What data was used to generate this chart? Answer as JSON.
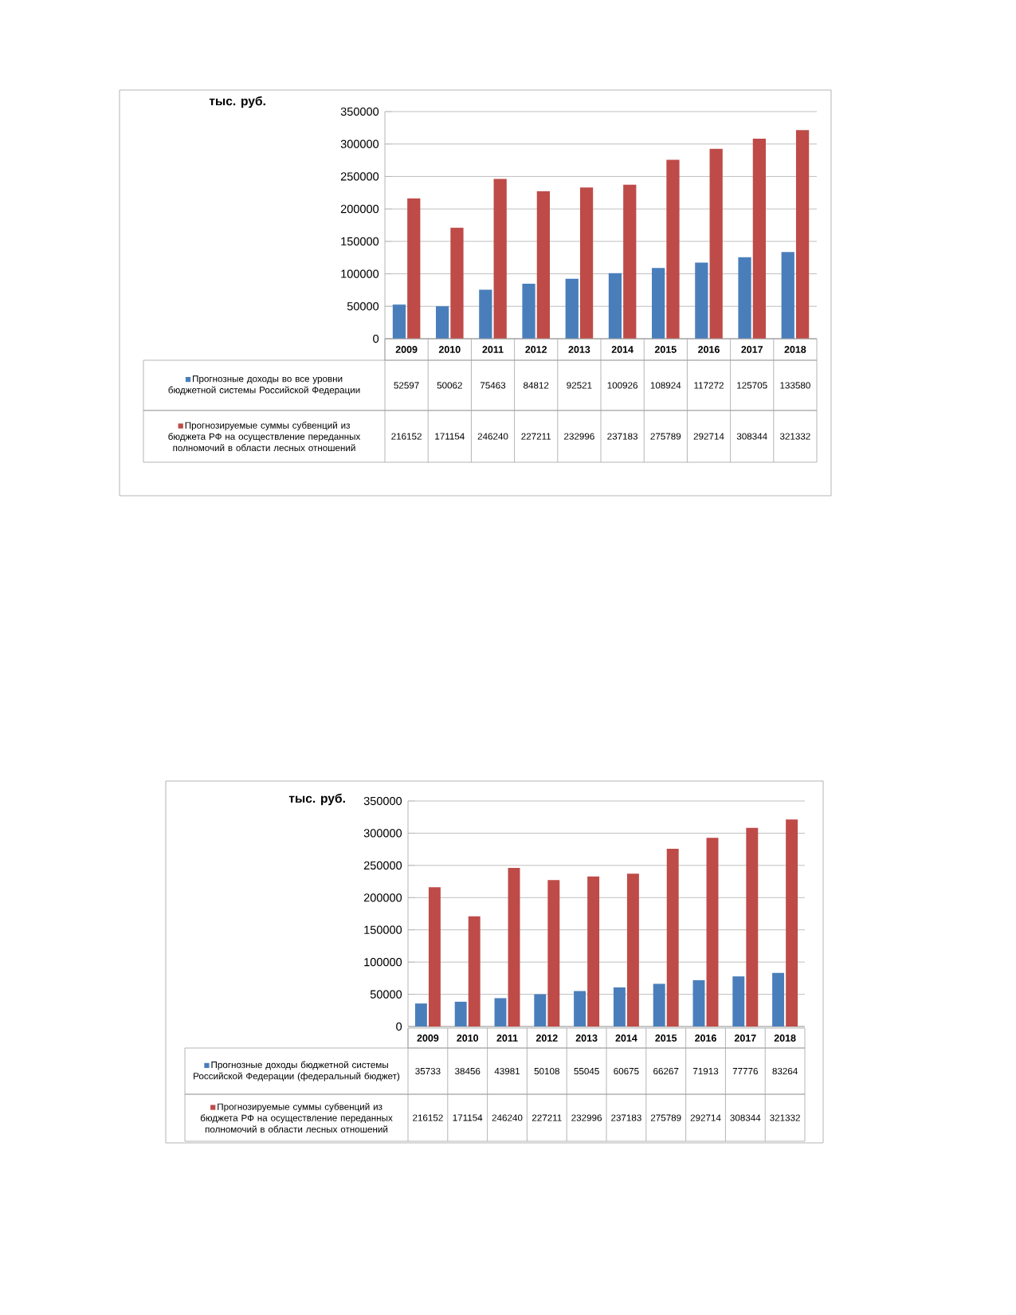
{
  "chart_data": [
    {
      "type": "bar",
      "ylabel": "тыс. руб.",
      "categories": [
        "2009",
        "2010",
        "2011",
        "2012",
        "2013",
        "2014",
        "2015",
        "2016",
        "2017",
        "2018"
      ],
      "series": [
        {
          "name": "Прогнозные доходы во все уровни бюджетной системы Российской Федерации",
          "color": "#4a7ebb",
          "values": [
            52597,
            50062,
            75463,
            84812,
            92521,
            100926,
            108924,
            117272,
            125705,
            133580
          ]
        },
        {
          "name": "Прогнозируемые суммы субвенций из бюджета РФ на осуществление переданных полномочий в области лесных отношений",
          "color": "#be4b48",
          "values": [
            216152,
            171154,
            246240,
            227211,
            232996,
            237183,
            275789,
            292714,
            308344,
            321332
          ]
        }
      ],
      "ylim": [
        0,
        350000
      ],
      "yticks": [
        0,
        50000,
        100000,
        150000,
        200000,
        250000,
        300000,
        350000
      ],
      "grid": "y",
      "legend": "bottom",
      "data_labels": true
    },
    {
      "type": "bar",
      "ylabel": "тыс. руб.",
      "categories": [
        "2009",
        "2010",
        "2011",
        "2012",
        "2013",
        "2014",
        "2015",
        "2016",
        "2017",
        "2018"
      ],
      "series": [
        {
          "name": "Прогнозные доходы бюджетной системы Российской Федерации (федеральный бюджет)",
          "color": "#4a7ebb",
          "values": [
            35733,
            38456,
            43981,
            50108,
            55045,
            60675,
            66267,
            71913,
            77776,
            83264
          ]
        },
        {
          "name": "Прогнозируемые суммы субвенций из бюджета РФ на осуществление переданных полномочий в области лесных отношений",
          "color": "#be4b48",
          "values": [
            216152,
            171154,
            246240,
            227211,
            232996,
            237183,
            275789,
            292714,
            308344,
            321332
          ]
        }
      ],
      "ylim": [
        0,
        350000
      ],
      "yticks": [
        0,
        50000,
        100000,
        150000,
        200000,
        250000,
        300000,
        350000
      ],
      "grid": "y",
      "legend": "bottom",
      "data_labels": true
    }
  ]
}
